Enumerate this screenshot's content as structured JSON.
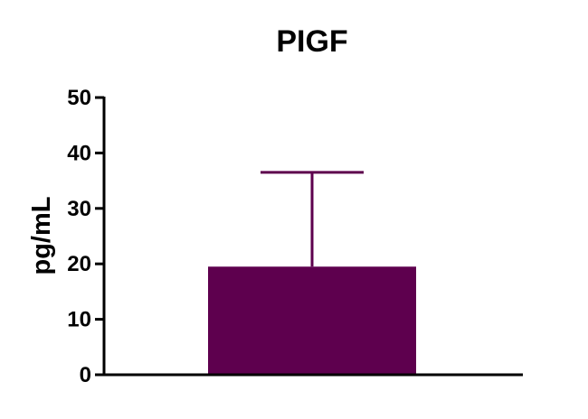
{
  "chart_data": {
    "type": "bar",
    "title": "PIGF",
    "xlabel": "",
    "ylabel": "pg/mL",
    "categories": [
      ""
    ],
    "values": [
      19.5
    ],
    "error_upper": [
      36.5
    ],
    "ylim": [
      0,
      50
    ],
    "yticks": [
      "0",
      "10",
      "20",
      "30",
      "40",
      "50"
    ],
    "grid": false,
    "legend": "none",
    "colors": {
      "bar": "#5e004e",
      "error_bar": "#5e004e",
      "axis": "#000000"
    }
  }
}
